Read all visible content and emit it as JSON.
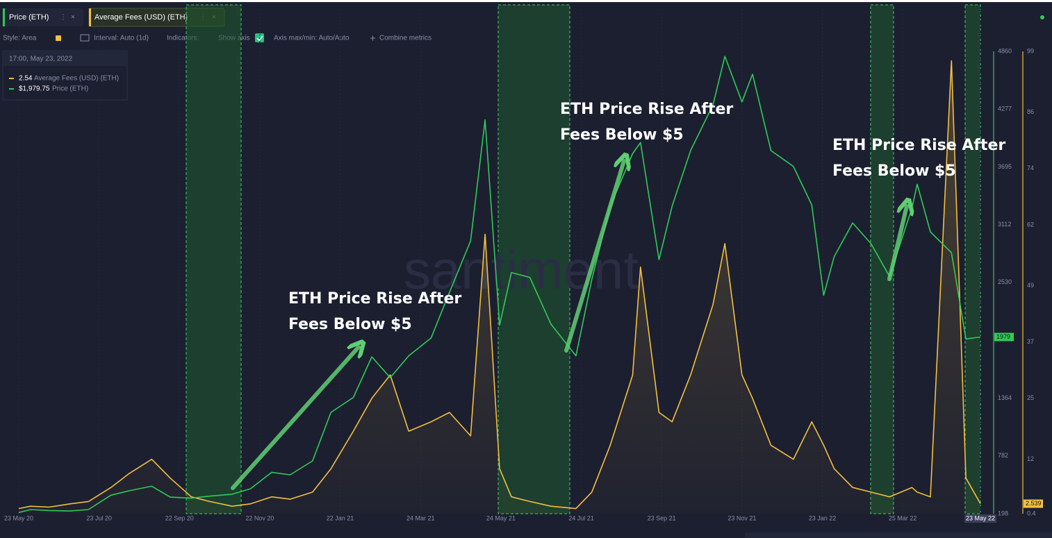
{
  "ui": {
    "toolbar": [
      "Style: Area",
      "Interval: Auto (1d)",
      "Indicators:",
      "Show axis",
      "Axis max/min: Auto/Auto",
      "Combine metrics"
    ],
    "tooltip": {
      "date": "17:00, May 23, 2022",
      "items": [
        {
          "value": "2.54",
          "name": "Average Fees (USD) (ETH)"
        },
        {
          "value": "$1,979.75",
          "name": "Price (ETH)"
        }
      ]
    },
    "badges": [
      "1979",
      "2.539"
    ],
    "watermark": "santiment"
  },
  "chart_data": {
    "type": "line",
    "x": [
      "2020-05-23",
      "2020-06-01",
      "2020-06-15",
      "2020-07-01",
      "2020-07-15",
      "2020-08-01",
      "2020-08-15",
      "2020-09-01",
      "2020-09-15",
      "2020-10-01",
      "2020-10-15",
      "2020-11-01",
      "2020-11-15",
      "2020-12-01",
      "2020-12-15",
      "2021-01-01",
      "2021-01-15",
      "2021-02-01",
      "2021-02-15",
      "2021-03-01",
      "2021-03-15",
      "2021-04-01",
      "2021-04-15",
      "2021-05-01",
      "2021-05-12",
      "2021-05-23",
      "2021-06-01",
      "2021-06-15",
      "2021-07-01",
      "2021-07-20",
      "2021-08-01",
      "2021-08-15",
      "2021-09-01",
      "2021-09-07",
      "2021-09-21",
      "2021-10-01",
      "2021-10-15",
      "2021-11-01",
      "2021-11-10",
      "2021-11-23",
      "2021-12-01",
      "2021-12-15",
      "2022-01-01",
      "2022-01-15",
      "2022-01-24",
      "2022-02-01",
      "2022-02-15",
      "2022-03-01",
      "2022-03-15",
      "2022-04-01",
      "2022-04-05",
      "2022-04-15",
      "2022-05-01",
      "2022-05-12",
      "2022-05-23"
    ],
    "series": [
      {
        "name": "Price (ETH)",
        "color": "#2ecc55",
        "axis": "y",
        "values": [
          210,
          240,
          230,
          225,
          240,
          385,
          430,
          475,
          365,
          355,
          375,
          395,
          450,
          615,
          590,
          730,
          1220,
          1370,
          1780,
          1570,
          1790,
          1970,
          2430,
          2950,
          4170,
          2100,
          2630,
          2580,
          2110,
          1790,
          2560,
          3300,
          3830,
          3940,
          2760,
          3300,
          3860,
          4320,
          4810,
          4350,
          4630,
          3860,
          3700,
          3310,
          2400,
          2790,
          3130,
          2920,
          2590,
          3280,
          3520,
          3040,
          2830,
          1960,
          1979.75
        ]
      },
      {
        "name": "Average Fees (USD) (ETH)",
        "color": "#f3c03f",
        "axis": "y2",
        "values": [
          1.5,
          2,
          1.8,
          2.5,
          3,
          6,
          9,
          12,
          8,
          4,
          3,
          2,
          2.5,
          4,
          3.5,
          5,
          10,
          18,
          25,
          30,
          18,
          20,
          22,
          17,
          60,
          10,
          4,
          3,
          2,
          1.5,
          5,
          15,
          30,
          53,
          22,
          20,
          30,
          45,
          58,
          30,
          25,
          15,
          12,
          20,
          15,
          10,
          6,
          5,
          4,
          6,
          5,
          4,
          97,
          8,
          2.54
        ]
      }
    ],
    "xlim": [
      "2020-05-13",
      "2022-05-23"
    ],
    "xticks": [
      {
        "value": "2020-05-23",
        "label": "23 May 20"
      },
      {
        "value": "2020-07-23",
        "label": "23 Jul 20"
      },
      {
        "value": "2020-09-22",
        "label": "22 Sep 20"
      },
      {
        "value": "2020-11-22",
        "label": "22 Nov 20"
      },
      {
        "value": "2021-01-22",
        "label": "22 Jan 21"
      },
      {
        "value": "2021-03-24",
        "label": "24 Mar 21"
      },
      {
        "value": "2021-05-24",
        "label": "24 May 21"
      },
      {
        "value": "2021-07-24",
        "label": "24 Jul 21"
      },
      {
        "value": "2021-09-23",
        "label": "23 Sep 21"
      },
      {
        "value": "2021-11-23",
        "label": "23 Nov 21"
      },
      {
        "value": "2022-01-23",
        "label": "23 Jan 22"
      },
      {
        "value": "2022-03-25",
        "label": "25 Mar 22"
      },
      {
        "value": "2022-05-23",
        "label": "23 May 22"
      }
    ],
    "ylim": [
      198,
      4860
    ],
    "yticks": [
      198,
      782,
      1364,
      2530,
      3112,
      3695,
      4277,
      4860
    ],
    "y2lim": [
      0.4,
      99
    ],
    "y2ticks": [
      0.4,
      12,
      25,
      37,
      49,
      62,
      74,
      86,
      99
    ],
    "grid": true,
    "annotations": [
      {
        "lines": [
          "ETH Price Rise After",
          "Fees Below $5"
        ]
      },
      {
        "lines": [
          "ETH Price Rise After",
          "Fees Below $5"
        ]
      },
      {
        "lines": [
          "ETH Price Rise After",
          "Fees Below $5"
        ]
      }
    ]
  }
}
